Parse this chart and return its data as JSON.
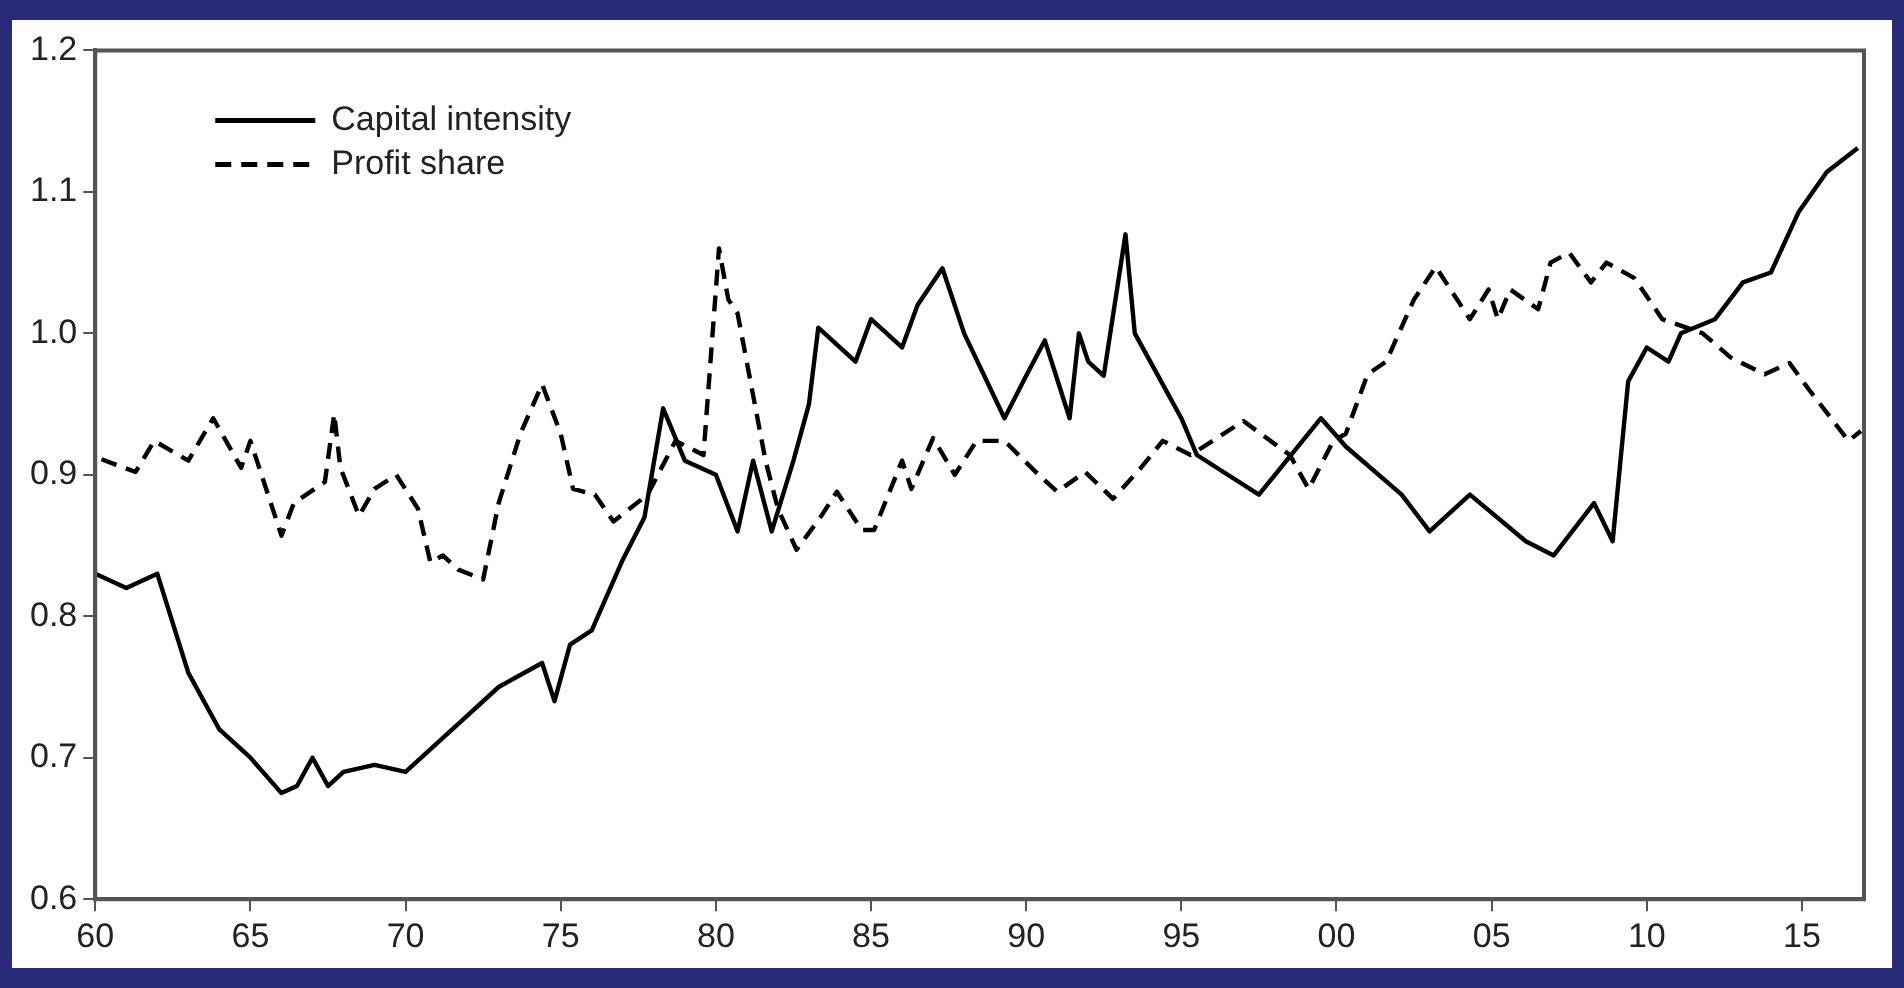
{
  "chart_data": {
    "type": "line",
    "xlim": [
      1960,
      2017
    ],
    "xticks": [
      {
        "value": 1960,
        "label": "60"
      },
      {
        "value": 1965,
        "label": "65"
      },
      {
        "value": 1970,
        "label": "70"
      },
      {
        "value": 1975,
        "label": "75"
      },
      {
        "value": 1980,
        "label": "80"
      },
      {
        "value": 1985,
        "label": "85"
      },
      {
        "value": 1990,
        "label": "90"
      },
      {
        "value": 1995,
        "label": "95"
      },
      {
        "value": 2000,
        "label": "00"
      },
      {
        "value": 2005,
        "label": "05"
      },
      {
        "value": 2010,
        "label": "10"
      },
      {
        "value": 2015,
        "label": "15"
      }
    ],
    "ylim": [
      0.6,
      1.2
    ],
    "yticks": [
      0.6,
      0.7,
      0.8,
      0.9,
      {
        "value": 1,
        "label": "1.0"
      },
      1.1,
      1.2
    ],
    "grid": false,
    "legend": "top left",
    "marker": "none",
    "series": [
      {
        "name": "Capital intensity",
        "color": "#000000",
        "line_style": "solid",
        "x": [
          1960,
          1961,
          1962,
          1963,
          1964,
          1965,
          1966,
          1966.5,
          1967,
          1967.5,
          1968,
          1969,
          1970,
          1971,
          1972,
          1973,
          1974.4,
          1974.8,
          1975.3,
          1976,
          1977,
          1977.7,
          1978.3,
          1979,
          1980,
          1980.7,
          1981.2,
          1981.8,
          1982.5,
          1983,
          1983.3,
          1984.5,
          1985,
          1986,
          1986.5,
          1987.3,
          1988,
          1989.3,
          1990,
          1990.6,
          1991.4,
          1991.7,
          1992,
          1992.5,
          1993.2,
          1993.5,
          1994,
          1995,
          1995.5,
          1997.5,
          1999.5,
          2000.3,
          2002.1,
          2003,
          2004.3,
          2006.1,
          2007,
          2008.3,
          2008.9,
          2009.4,
          2010,
          2010.7,
          2011.1,
          2012.2,
          2013.1,
          2014,
          2014.9,
          2015.8,
          2016.8
        ],
        "values": [
          0.83,
          0.82,
          0.83,
          0.76,
          0.72,
          0.7,
          0.675,
          0.68,
          0.7,
          0.68,
          0.69,
          0.695,
          0.69,
          0.71,
          0.73,
          0.75,
          0.767,
          0.74,
          0.78,
          0.79,
          0.84,
          0.87,
          0.947,
          0.91,
          0.9,
          0.86,
          0.91,
          0.86,
          0.91,
          0.95,
          1.004,
          0.98,
          1.01,
          0.99,
          1.02,
          1.046,
          1,
          0.94,
          0.97,
          0.995,
          0.94,
          1,
          0.98,
          0.97,
          1.07,
          1,
          0.98,
          0.94,
          0.914,
          0.886,
          0.94,
          0.92,
          0.886,
          0.86,
          0.886,
          0.853,
          0.843,
          0.88,
          0.853,
          0.966,
          0.99,
          0.98,
          1,
          1.01,
          1.036,
          1.043,
          1.086,
          1.114,
          1.131
        ]
      },
      {
        "name": "Profit share",
        "color": "#000000",
        "line_style": "dashed",
        "x": [
          1960.2,
          1961.3,
          1961.9,
          1963,
          1963.8,
          1964.7,
          1965,
          1966,
          1966.4,
          1967.4,
          1967.7,
          1967.9,
          1968.5,
          1969,
          1969.7,
          1970.4,
          1970.8,
          1971.2,
          1971.7,
          1972.5,
          1973,
          1973.7,
          1974.4,
          1975,
          1975.4,
          1976.1,
          1976.7,
          1977.8,
          1978.7,
          1979.6,
          1980.1,
          1980.4,
          1980.7,
          1981.6,
          1982,
          1982.6,
          1983.4,
          1983.9,
          1984.7,
          1985.1,
          1986,
          1986.3,
          1987,
          1987.7,
          1988.4,
          1989.3,
          1990.4,
          1991,
          1991.9,
          1992.8,
          1993.7,
          1994.4,
          1995.3,
          1997,
          1997.5,
          1998.5,
          1999.1,
          1999.9,
          2000.3,
          2001,
          2001.6,
          2002.5,
          2003.2,
          2004.3,
          2004.9,
          2005.2,
          2005.6,
          2006.5,
          2006.9,
          2007.5,
          2008.2,
          2008.7,
          2009.6,
          2010.5,
          2011.8,
          2012.7,
          2013.8,
          2014.6,
          2015.2,
          2016.5,
          2016.9
        ],
        "values": [
          0.911,
          0.902,
          0.924,
          0.91,
          0.94,
          0.905,
          0.924,
          0.857,
          0.88,
          0.895,
          0.943,
          0.905,
          0.871,
          0.89,
          0.9,
          0.876,
          0.838,
          0.843,
          0.833,
          0.826,
          0.88,
          0.929,
          0.964,
          0.929,
          0.89,
          0.886,
          0.867,
          0.886,
          0.924,
          0.914,
          1.06,
          1.024,
          1.014,
          0.91,
          0.876,
          0.847,
          0.871,
          0.888,
          0.861,
          0.861,
          0.91,
          0.89,
          0.926,
          0.9,
          0.924,
          0.924,
          0.9,
          0.888,
          0.902,
          0.883,
          0.905,
          0.924,
          0.914,
          0.938,
          0.93,
          0.914,
          0.89,
          0.924,
          0.929,
          0.971,
          0.98,
          1.024,
          1.047,
          1.01,
          1.031,
          1.01,
          1.031,
          1.017,
          1.05,
          1.057,
          1.036,
          1.05,
          1.039,
          1.01,
          1,
          0.983,
          0.971,
          0.979,
          0.961,
          0.924,
          0.931
        ]
      }
    ]
  }
}
